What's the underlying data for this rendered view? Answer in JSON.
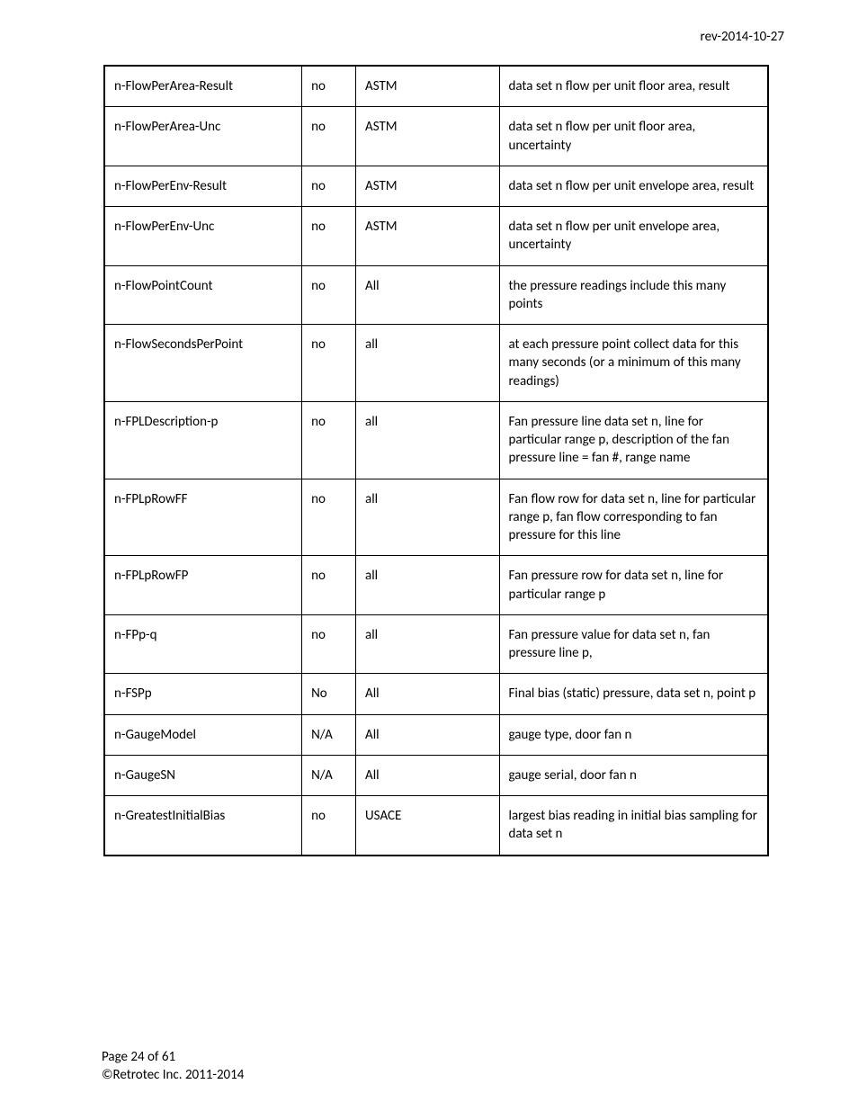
{
  "header": {
    "revision": "rev-2014-10-27"
  },
  "table": {
    "rows": [
      {
        "name": "n-FlowPerArea-Result",
        "col2": "no",
        "col3": "ASTM",
        "description": "data set n  flow per unit floor area, result"
      },
      {
        "name": "n-FlowPerArea-Unc",
        "col2": "no",
        "col3": "ASTM",
        "description": "data set n flow per unit floor area, uncertainty"
      },
      {
        "name": "n-FlowPerEnv-Result",
        "col2": "no",
        "col3": "ASTM",
        "description": "data set n flow per unit envelope area, result"
      },
      {
        "name": "n-FlowPerEnv-Unc",
        "col2": "no",
        "col3": "ASTM",
        "description": "data set n flow per unit envelope area, uncertainty"
      },
      {
        "name": "n-FlowPointCount",
        "col2": "no",
        "col3": "All",
        "description": "the pressure readings include this many points"
      },
      {
        "name": "n-FlowSecondsPerPoint",
        "col2": "no",
        "col3": "all",
        "description": "at each pressure point collect data for this many seconds (or a minimum of this many readings)"
      },
      {
        "name": "n-FPLDescription-p",
        "col2": "no",
        "col3": "all",
        "description": "Fan pressure line data set n, line for particular range p, description of the fan pressure line = fan #, range name"
      },
      {
        "name": "n-FPLpRowFF",
        "col2": "no",
        "col3": "all",
        "description": "Fan flow row for data set n, line for particular range p, fan flow corresponding to fan pressure for this line"
      },
      {
        "name": "n-FPLpRowFP",
        "col2": "no",
        "col3": "all",
        "description": "Fan pressure row for data set n, line for particular range p"
      },
      {
        "name": "n-FPp-q",
        "col2": "no",
        "col3": "all",
        "description": "Fan pressure value for data set n, fan pressure line p,"
      },
      {
        "name": "n-FSPp",
        "col2": "No",
        "col3": "All",
        "description": "Final bias (static) pressure, data set n, point p"
      },
      {
        "name": "n-GaugeModel",
        "col2": "N/A",
        "col3": "All",
        "description": "gauge type, door fan n"
      },
      {
        "name": "n-GaugeSN",
        "col2": "N/A",
        "col3": "All",
        "description": "gauge serial, door fan n"
      },
      {
        "name": "n-GreatestInitialBias",
        "col2": "no",
        "col3": "USACE",
        "description": "largest bias reading in initial bias sampling for data set n"
      }
    ]
  },
  "footer": {
    "page_info": "Page 24 of 61",
    "copyright": "©Retrotec Inc. 2011-2014"
  }
}
